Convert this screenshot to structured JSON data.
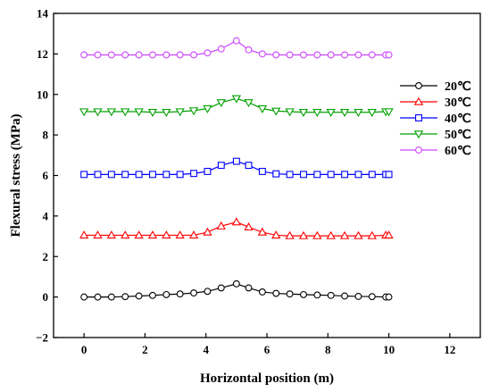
{
  "chart_data": {
    "type": "line",
    "title": "",
    "xlabel": "Horizontal position (m)",
    "ylabel": "Flexural stress (MPa)",
    "xlim": [
      -1,
      13
    ],
    "ylim": [
      -2,
      14
    ],
    "xticks": [
      "0",
      "2",
      "4",
      "6",
      "8",
      "10",
      "12"
    ],
    "yticks": [
      "−2",
      "0",
      "2",
      "4",
      "6",
      "8",
      "10",
      "12",
      "14"
    ],
    "grid": false,
    "legend_position": "right",
    "x": [
      0,
      0.45,
      0.9,
      1.35,
      1.8,
      2.25,
      2.7,
      3.15,
      3.6,
      4.05,
      4.5,
      5.0,
      5.4,
      5.85,
      6.3,
      6.75,
      7.2,
      7.65,
      8.1,
      8.55,
      9.0,
      9.45,
      9.9,
      10.0
    ],
    "series": [
      {
        "name": "20℃",
        "marker": "circle",
        "color": "#000000",
        "values": [
          0.0,
          0.0,
          0.0,
          0.02,
          0.05,
          0.08,
          0.12,
          0.15,
          0.2,
          0.28,
          0.45,
          0.65,
          0.45,
          0.25,
          0.18,
          0.15,
          0.12,
          0.1,
          0.08,
          0.05,
          0.03,
          0.02,
          0.0,
          0.0
        ]
      },
      {
        "name": "30℃",
        "marker": "triangle-up",
        "color": "#ff0000",
        "values": [
          3.05,
          3.05,
          3.05,
          3.05,
          3.05,
          3.05,
          3.05,
          3.05,
          3.05,
          3.2,
          3.5,
          3.7,
          3.45,
          3.2,
          3.05,
          3.02,
          3.02,
          3.02,
          3.02,
          3.02,
          3.02,
          3.02,
          3.05,
          3.05
        ]
      },
      {
        "name": "40℃",
        "marker": "square",
        "color": "#0000ff",
        "values": [
          6.05,
          6.05,
          6.05,
          6.05,
          6.05,
          6.05,
          6.05,
          6.05,
          6.1,
          6.2,
          6.5,
          6.7,
          6.5,
          6.2,
          6.08,
          6.05,
          6.05,
          6.05,
          6.05,
          6.05,
          6.05,
          6.05,
          6.05,
          6.05
        ]
      },
      {
        "name": "50℃",
        "marker": "triangle-down",
        "color": "#00a000",
        "values": [
          9.15,
          9.15,
          9.15,
          9.15,
          9.15,
          9.12,
          9.12,
          9.15,
          9.2,
          9.3,
          9.6,
          9.8,
          9.6,
          9.3,
          9.18,
          9.15,
          9.12,
          9.12,
          9.12,
          9.12,
          9.12,
          9.12,
          9.15,
          9.15
        ]
      },
      {
        "name": "60℃",
        "marker": "circle",
        "color": "#cc44ff",
        "values": [
          11.95,
          11.95,
          11.95,
          11.95,
          11.95,
          11.95,
          11.95,
          11.95,
          11.95,
          12.05,
          12.25,
          12.65,
          12.2,
          12.0,
          11.95,
          11.95,
          11.95,
          11.95,
          11.95,
          11.95,
          11.95,
          11.95,
          11.95,
          11.95
        ]
      }
    ]
  }
}
